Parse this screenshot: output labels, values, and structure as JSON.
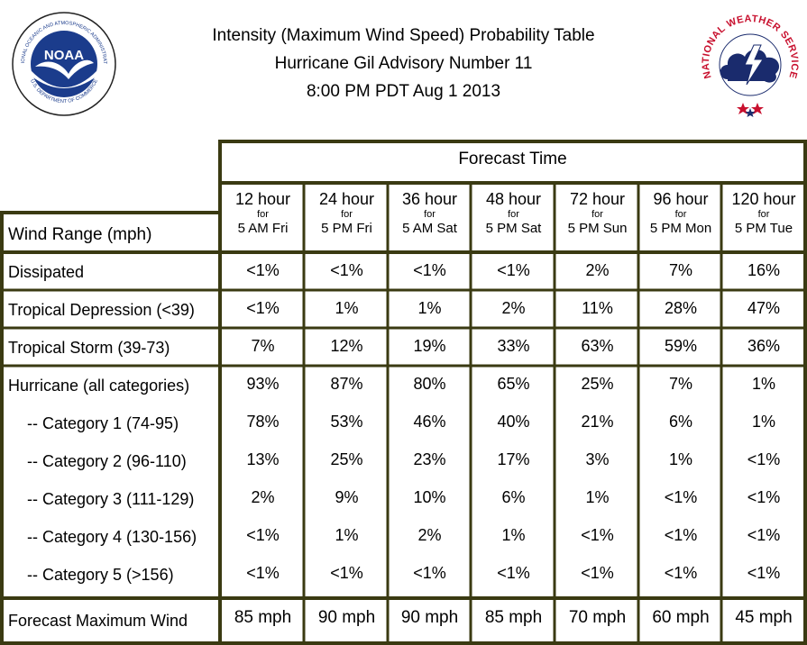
{
  "title": {
    "line1": "Intensity (Maximum Wind Speed) Probability Table",
    "line2": "Hurricane Gil Advisory Number 11",
    "line3": "8:00 PM PDT Aug 1 2013"
  },
  "logos": {
    "noaa": {
      "text": "NOAA",
      "ring_top": "NATIONAL OCEANIC AND ATMOSPHERIC ADMINISTRATION",
      "ring_bottom": "U.S. DEPARTMENT OF COMMERCE",
      "icon": "noaa-logo-icon"
    },
    "nws": {
      "ring": "NATIONAL WEATHER SERVICE",
      "icon": "nws-logo-icon"
    }
  },
  "table": {
    "forecast_time_label": "Forecast Time",
    "wind_range_label": "Wind Range (mph)",
    "columns": [
      {
        "hours": "12 hour",
        "for": "for",
        "when": "5 AM Fri"
      },
      {
        "hours": "24 hour",
        "for": "for",
        "when": "5 PM Fri"
      },
      {
        "hours": "36 hour",
        "for": "for",
        "when": "5 AM Sat"
      },
      {
        "hours": "48 hour",
        "for": "for",
        "when": "5 PM Sat"
      },
      {
        "hours": "72 hour",
        "for": "for",
        "when": "5 PM Sun"
      },
      {
        "hours": "96 hour",
        "for": "for",
        "when": "5 PM Mon"
      },
      {
        "hours": "120 hour",
        "for": "for",
        "when": "5 PM Tue"
      }
    ],
    "rows": [
      {
        "label": "Dissipated",
        "values": [
          "<1%",
          "<1%",
          "<1%",
          "<1%",
          "2%",
          "7%",
          "16%"
        ]
      },
      {
        "label": "Tropical Depression (<39)",
        "values": [
          "<1%",
          "1%",
          "1%",
          "2%",
          "11%",
          "28%",
          "47%"
        ]
      },
      {
        "label": "Tropical Storm (39-73)",
        "values": [
          "7%",
          "12%",
          "19%",
          "33%",
          "63%",
          "59%",
          "36%"
        ]
      },
      {
        "label": "Hurricane (all categories)",
        "values": [
          "93%",
          "87%",
          "80%",
          "65%",
          "25%",
          "7%",
          "1%"
        ]
      },
      {
        "label": "  -- Category 1 (74-95)",
        "values": [
          "78%",
          "53%",
          "46%",
          "40%",
          "21%",
          "6%",
          "1%"
        ]
      },
      {
        "label": "  -- Category 2 (96-110)",
        "values": [
          "13%",
          "25%",
          "23%",
          "17%",
          "3%",
          "1%",
          "<1%"
        ]
      },
      {
        "label": "  -- Category 3 (111-129)",
        "values": [
          "2%",
          "9%",
          "10%",
          "6%",
          "1%",
          "<1%",
          "<1%"
        ]
      },
      {
        "label": "  -- Category 4 (130-156)",
        "values": [
          "<1%",
          "1%",
          "2%",
          "1%",
          "<1%",
          "<1%",
          "<1%"
        ]
      },
      {
        "label": "  -- Category 5 (>156)",
        "values": [
          "<1%",
          "<1%",
          "<1%",
          "<1%",
          "<1%",
          "<1%",
          "<1%"
        ]
      }
    ],
    "max_wind": {
      "label": "Forecast Maximum Wind",
      "values": [
        "85 mph",
        "90 mph",
        "90 mph",
        "85 mph",
        "70 mph",
        "60 mph",
        "45 mph"
      ]
    },
    "colors": {
      "border": "#3a3a12",
      "noaa_blue": "#1b3c8c",
      "nws_red": "#c8102e",
      "nws_navy": "#1a2b6d"
    }
  }
}
